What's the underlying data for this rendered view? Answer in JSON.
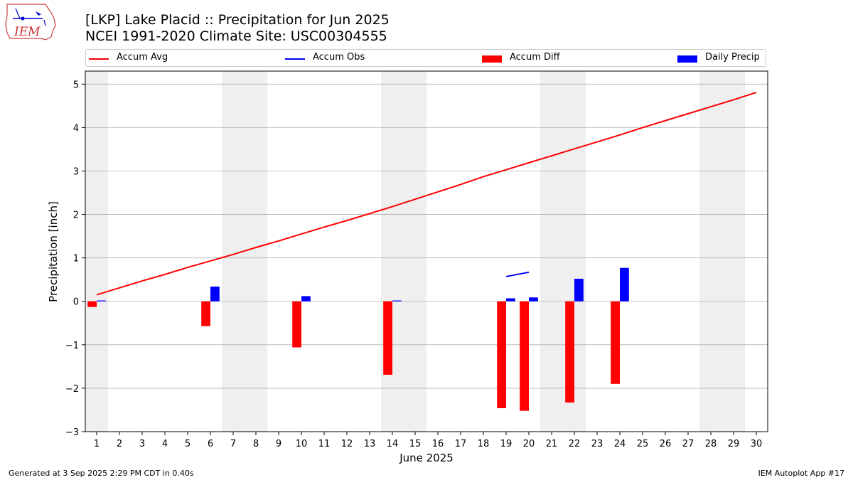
{
  "header": {
    "title": "[LKP] Lake Placid :: Precipitation for Jun 2025",
    "subtitle": "NCEI 1991-2020 Climate Site: USC00304555",
    "logo_text": "IEM"
  },
  "footer": {
    "generated": "Generated at 3 Sep 2025 2:29 PM CDT in 0.40s",
    "app": "IEM Autoplot App #17"
  },
  "colors": {
    "accum_avg": "#ff0000",
    "accum_obs": "#0000ff",
    "accum_diff": "#ff0000",
    "daily_precip": "#0000ff",
    "weekend_band": "#efefef",
    "grid": "#b0b0b0"
  },
  "chart_data": {
    "type": "bar",
    "xlabel": "June 2025",
    "ylabel": "Precipitation [inch]",
    "xlim": [
      0.5,
      30.5
    ],
    "ylim": [
      -3.0,
      5.3
    ],
    "yticks": [
      -3,
      -2,
      -1,
      0,
      1,
      2,
      3,
      4,
      5
    ],
    "ytick_labels": [
      "−3",
      "−2",
      "−1",
      "0",
      "1",
      "2",
      "3",
      "4",
      "5"
    ],
    "xticks": [
      1,
      2,
      3,
      4,
      5,
      6,
      7,
      8,
      9,
      10,
      11,
      12,
      13,
      14,
      15,
      16,
      17,
      18,
      19,
      20,
      21,
      22,
      23,
      24,
      25,
      26,
      27,
      28,
      29,
      30
    ],
    "grid": "horizontal",
    "legend": {
      "placement": "top",
      "entries": [
        "Accum Avg",
        "Accum Obs",
        "Accum Diff",
        "Daily Precip"
      ]
    },
    "weekend_bands": [
      [
        0.5,
        1.5
      ],
      [
        6.5,
        8.5
      ],
      [
        13.5,
        15.5
      ],
      [
        20.5,
        22.5
      ],
      [
        27.5,
        29.5
      ]
    ],
    "series": [
      {
        "name": "Accum Avg",
        "type": "line",
        "x": [
          1,
          2,
          3,
          4,
          5,
          6,
          7,
          8,
          9,
          10,
          11,
          12,
          13,
          14,
          15,
          16,
          17,
          18,
          19,
          20,
          21,
          22,
          23,
          24,
          25,
          26,
          27,
          28,
          29,
          30
        ],
        "values": [
          0.15,
          0.31,
          0.47,
          0.62,
          0.78,
          0.93,
          1.08,
          1.24,
          1.39,
          1.55,
          1.71,
          1.86,
          2.02,
          2.18,
          2.35,
          2.52,
          2.69,
          2.87,
          3.03,
          3.19,
          3.35,
          3.51,
          3.67,
          3.83,
          4.0,
          4.16,
          4.32,
          4.48,
          4.64,
          4.81
        ]
      },
      {
        "name": "Accum Obs",
        "type": "line",
        "x": [
          19,
          20
        ],
        "values": [
          0.57,
          0.67
        ]
      },
      {
        "name": "Accum Diff",
        "type": "bar",
        "x": [
          1,
          6,
          10,
          14,
          19,
          20,
          22,
          24
        ],
        "values": [
          -0.13,
          -0.57,
          -1.06,
          -1.69,
          -2.46,
          -2.52,
          -2.33,
          -1.9
        ]
      },
      {
        "name": "Daily Precip",
        "type": "bar",
        "x": [
          1,
          6,
          10,
          14,
          19,
          20,
          22,
          24
        ],
        "values": [
          0.02,
          0.34,
          0.12,
          0.02,
          0.07,
          0.09,
          0.52,
          0.77
        ]
      }
    ]
  }
}
